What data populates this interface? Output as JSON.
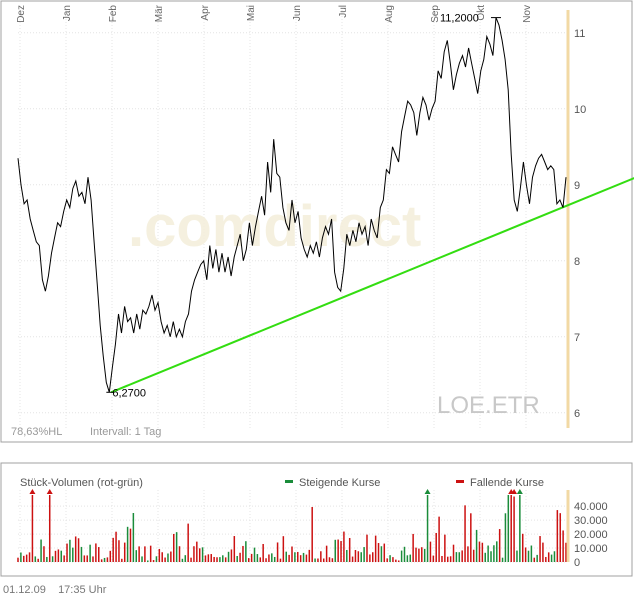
{
  "chart_data": [
    {
      "type": "line",
      "months": [
        "Dez",
        "Jan",
        "Feb",
        "Mär",
        "Apr",
        "Mai",
        "Jun",
        "Jul",
        "Aug",
        "Sep",
        "Okt",
        "Nov"
      ],
      "y_ticks": [
        6,
        7,
        8,
        9,
        10,
        11
      ],
      "ylim": [
        5.8,
        11.3
      ],
      "watermark": ".comdirect",
      "symbol": "LOE.ETR",
      "hl_label": "78,63%HL",
      "interval_label": "Intervall: 1 Tag",
      "annotations": {
        "low_label": "6,2700",
        "low_value": 6.27,
        "high_label": "11,2000",
        "high_value": 11.2
      },
      "trendline": {
        "start": [
          0.17,
          6.27
        ],
        "end": [
          1.23,
          9.4
        ]
      },
      "colors": {
        "price_line": "#000000",
        "trendline": "#33dd11",
        "current_marker": "#f2d9a4"
      },
      "series": [
        {
          "values": [
            9.35,
            9.0,
            8.75,
            8.8,
            8.55,
            8.4,
            8.25,
            8.2,
            7.75,
            7.6,
            7.8,
            8.1,
            8.3,
            8.5,
            8.45,
            8.65,
            8.8,
            8.7,
            8.95,
            9.05,
            8.85,
            8.9,
            8.75,
            9.1,
            8.8,
            8.25,
            7.7,
            7.15,
            6.75,
            6.4,
            6.27,
            6.6,
            6.9,
            7.3,
            7.05,
            7.4,
            7.2,
            7.25,
            7.05,
            7.3,
            7.1,
            7.35,
            7.3,
            7.4,
            7.55,
            7.35,
            7.45,
            7.2,
            7.05,
            7.15,
            7.0,
            7.2,
            7.0,
            7.1,
            7.0,
            7.2,
            7.3,
            7.6,
            7.75,
            7.85,
            7.95,
            8.0,
            7.75,
            8.2,
            7.9,
            8.15,
            7.85,
            8.1,
            7.85,
            8.05,
            7.8,
            8.05,
            8.2,
            8.35,
            8.0,
            8.15,
            8.5,
            8.2,
            8.45,
            8.65,
            8.85,
            8.6,
            9.3,
            8.9,
            9.6,
            9.15,
            9.1,
            8.7,
            8.5,
            8.4,
            8.8,
            8.5,
            8.65,
            8.3,
            8.15,
            8.05,
            8.2,
            8.1,
            8.25,
            8.05,
            8.3,
            8.45,
            8.35,
            8.55,
            7.85,
            7.65,
            7.6,
            7.9,
            8.35,
            8.2,
            8.4,
            8.25,
            8.5,
            8.35,
            8.45,
            8.2,
            8.55,
            8.4,
            8.3,
            8.7,
            8.8,
            9.2,
            9.15,
            9.5,
            9.4,
            9.3,
            9.7,
            9.9,
            10.1,
            10.05,
            9.95,
            9.65,
            9.95,
            10.15,
            10.05,
            9.85,
            10.0,
            10.1,
            10.5,
            10.4,
            10.75,
            10.9,
            10.6,
            10.25,
            10.45,
            10.6,
            10.7,
            10.55,
            10.8,
            10.6,
            10.4,
            10.2,
            10.5,
            10.65,
            10.95,
            10.85,
            10.7,
            11.2,
            11.1,
            10.9,
            10.65,
            10.25,
            9.4,
            8.8,
            8.65,
            8.95,
            9.3,
            9.0,
            8.75,
            9.1,
            9.25,
            9.35,
            9.4,
            9.3,
            9.2,
            9.25,
            9.2,
            8.75,
            8.8,
            8.7,
            9.1
          ]
        }
      ]
    },
    {
      "type": "bar",
      "title": "Stück-Volumen (rot-grün)",
      "legend": [
        "Steigende Kurse",
        "Fallende Kurse"
      ],
      "y_ticks": [
        0,
        10000,
        20000,
        30000,
        40000
      ],
      "y_tick_labels": [
        "0",
        "10.000",
        "20.000",
        "30.000",
        "40.000"
      ],
      "ylim": [
        0,
        48000
      ],
      "colors": {
        "up": "#1a8c3a",
        "down": "#cc1111"
      },
      "series": [
        {
          "values": [
            3100,
            6800,
            4400,
            5300,
            6900,
            48000,
            4000,
            2300,
            16100,
            11300,
            3600,
            48000,
            4100,
            8000,
            9000,
            8100,
            4700,
            13200,
            15900,
            10300,
            18300,
            17000,
            10800,
            4700,
            4700,
            12400,
            4000,
            13300,
            10700,
            1900,
            2900,
            3300,
            8000,
            17300,
            21700,
            15600,
            2300,
            13900,
            25200,
            23900,
            35100,
            8500,
            11200,
            4000,
            11200,
            1100,
            11700,
            1400,
            4100,
            9300,
            7000,
            3200,
            6100,
            7500,
            20100,
            21400,
            11300,
            2300,
            4900,
            27500,
            3100,
            11300,
            14600,
            9800,
            10500,
            4700,
            5500,
            5700,
            3600,
            3400,
            3500,
            4800,
            3300,
            7300,
            9000,
            18600,
            4300,
            6600,
            11500,
            14900,
            2800,
            5800,
            10300,
            5700,
            3300,
            12900,
            2700,
            5400,
            6200,
            3600,
            14000,
            2400,
            18500,
            7400,
            5100,
            11100,
            7000,
            7200,
            4900,
            6500,
            5300,
            8700,
            39400,
            2500,
            2500,
            7700,
            2500,
            11700,
            3400,
            2700,
            15900,
            16100,
            15000,
            21800,
            8600,
            17200,
            3900,
            8600,
            7700,
            7000,
            10700,
            19600,
            5400,
            7000,
            18900,
            13600,
            11300,
            13200,
            2600,
            4900,
            3500,
            1700,
            1100,
            8200,
            10900,
            4800,
            5300,
            20100,
            10300,
            9600,
            10600,
            9400,
            48000,
            14600,
            4600,
            20800,
            32500,
            4300,
            19600,
            3800,
            4100,
            12400,
            7100,
            7000,
            8300,
            40600,
            11200,
            34900,
            8800,
            23000,
            14600,
            13800,
            6600,
            11800,
            7700,
            12000,
            14800,
            23600,
            3100,
            34900,
            48000,
            48000,
            46900,
            8200,
            48000,
            20200,
            10400,
            8100,
            11800,
            3100,
            5100,
            18600,
            13900,
            3600,
            6900,
            5300,
            7700,
            37200,
            35000,
            22600,
            13800
          ],
          "up": [
            false,
            true,
            false,
            false,
            false,
            false,
            true,
            false,
            true,
            false,
            true,
            false,
            true,
            false,
            false,
            true,
            false,
            false,
            true,
            true,
            false,
            false,
            true,
            false,
            false,
            true,
            false,
            false,
            false,
            false,
            true,
            false,
            false,
            false,
            false,
            false,
            false,
            false,
            true,
            false,
            true,
            true,
            false,
            true,
            false,
            true,
            false,
            false,
            true,
            false,
            false,
            false,
            true,
            false,
            false,
            true,
            false,
            true,
            true,
            false,
            false,
            false,
            false,
            false,
            true,
            false,
            false,
            false,
            false,
            false,
            true,
            true,
            false,
            true,
            false,
            false,
            true,
            false,
            false,
            true,
            false,
            false,
            true,
            true,
            false,
            false,
            false,
            false,
            true,
            true,
            false,
            false,
            false,
            true,
            false,
            false,
            true,
            false,
            false,
            true,
            false,
            false,
            false,
            true,
            false,
            false,
            false,
            false,
            false,
            false,
            true,
            false,
            false,
            false,
            true,
            false,
            false,
            false,
            false,
            true,
            true,
            false,
            false,
            false,
            false,
            false,
            true,
            false,
            false,
            true,
            false,
            false,
            false,
            true,
            true,
            true,
            true,
            false,
            false,
            false,
            false,
            true,
            true,
            false,
            false,
            false,
            false,
            false,
            false,
            false,
            false,
            false,
            true,
            true,
            false,
            false,
            false,
            false,
            false,
            true,
            false,
            false,
            true,
            true,
            true,
            true,
            true,
            false,
            true,
            true,
            true,
            false,
            false,
            true,
            true,
            false,
            false,
            true,
            true,
            false,
            true,
            false,
            false,
            false,
            false,
            true,
            true,
            false,
            false,
            false
          ]
        }
      ],
      "overflow_markers": [
        {
          "index": 5,
          "up": false
        },
        {
          "index": 11,
          "up": false
        },
        {
          "index": 142,
          "up": true
        },
        {
          "index": 171,
          "up": false
        },
        {
          "index": 172,
          "up": false
        },
        {
          "index": 174,
          "up": true
        }
      ]
    }
  ],
  "footer": {
    "date": "01.12.09",
    "time": "17:35 Uhr"
  }
}
